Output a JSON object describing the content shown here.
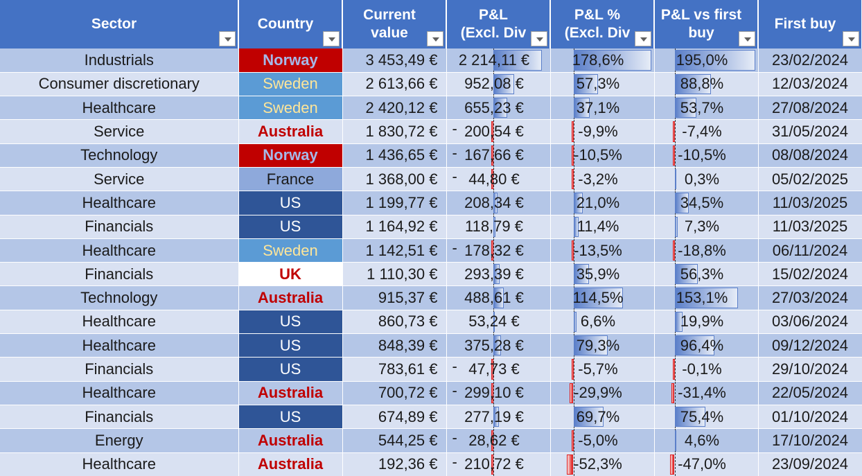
{
  "headers": {
    "sector": "Sector",
    "country": "Country",
    "current_value_1": "Current",
    "current_value_2": "value",
    "pl_1": "P&L",
    "pl_2": "(Excl. Div",
    "plpct_1": "P&L %",
    "plpct_2": "(Excl. Div",
    "plfirst_1": "P&L vs first",
    "plfirst_2": "buy",
    "first_buy": "First buy"
  },
  "colors": {
    "header_bg": "#4472C4",
    "band_dark": "#B4C6E7",
    "band_light": "#D9E1F2",
    "positive_bar": "#5B7FC9",
    "negative_bar": "#E02020"
  },
  "rows": [
    {
      "sector": "Industrials",
      "country": "Norway",
      "value": "3 453,49 €",
      "pl": "2 214,11 €",
      "pl_num": 2214.11,
      "pl_neg": false,
      "plpct": "178,6%",
      "plpct_num": 178.6,
      "plfirst": "195,0%",
      "plfirst_num": 195.0,
      "date": "23/02/2024"
    },
    {
      "sector": "Consumer discretionary",
      "country": "Sweden",
      "value": "2 613,66 €",
      "pl": "952,08 €",
      "pl_num": 952.08,
      "pl_neg": false,
      "plpct": "57,3%",
      "plpct_num": 57.3,
      "plfirst": "88,8%",
      "plfirst_num": 88.8,
      "date": "12/03/2024"
    },
    {
      "sector": "Healthcare",
      "country": "Sweden",
      "value": "2 420,12 €",
      "pl": "655,23 €",
      "pl_num": 655.23,
      "pl_neg": false,
      "plpct": "37,1%",
      "plpct_num": 37.1,
      "plfirst": "53,7%",
      "plfirst_num": 53.7,
      "date": "27/08/2024"
    },
    {
      "sector": "Service",
      "country": "Australia",
      "value": "1 830,72 €",
      "pl": "200,54 €",
      "pl_num": -200.54,
      "pl_neg": true,
      "plpct": "-9,9%",
      "plpct_num": -9.9,
      "plfirst": "-7,4%",
      "plfirst_num": -7.4,
      "date": "31/05/2024"
    },
    {
      "sector": "Technology",
      "country": "Norway",
      "value": "1 436,65 €",
      "pl": "167,66 €",
      "pl_num": -167.66,
      "pl_neg": true,
      "plpct": "-10,5%",
      "plpct_num": -10.5,
      "plfirst": "-10,5%",
      "plfirst_num": -10.5,
      "date": "08/08/2024"
    },
    {
      "sector": "Service",
      "country": "France",
      "value": "1 368,00 €",
      "pl": "44,80 €",
      "pl_num": -44.8,
      "pl_neg": true,
      "plpct": "-3,2%",
      "plpct_num": -3.2,
      "plfirst": "0,3%",
      "plfirst_num": 0.3,
      "date": "05/02/2025"
    },
    {
      "sector": "Healthcare",
      "country": "US",
      "value": "1 199,77 €",
      "pl": "208,34 €",
      "pl_num": 208.34,
      "pl_neg": false,
      "plpct": "21,0%",
      "plpct_num": 21.0,
      "plfirst": "34,5%",
      "plfirst_num": 34.5,
      "date": "11/03/2025"
    },
    {
      "sector": "Financials",
      "country": "US",
      "value": "1 164,92 €",
      "pl": "118,79 €",
      "pl_num": 118.79,
      "pl_neg": false,
      "plpct": "11,4%",
      "plpct_num": 11.4,
      "plfirst": "7,3%",
      "plfirst_num": 7.3,
      "date": "11/03/2025"
    },
    {
      "sector": "Healthcare",
      "country": "Sweden",
      "value": "1 142,51 €",
      "pl": "178,32 €",
      "pl_num": -178.32,
      "pl_neg": true,
      "plpct": "-13,5%",
      "plpct_num": -13.5,
      "plfirst": "-18,8%",
      "plfirst_num": -18.8,
      "date": "06/11/2024"
    },
    {
      "sector": "Financials",
      "country": "UK",
      "value": "1 110,30 €",
      "pl": "293,39 €",
      "pl_num": 293.39,
      "pl_neg": false,
      "plpct": "35,9%",
      "plpct_num": 35.9,
      "plfirst": "56,3%",
      "plfirst_num": 56.3,
      "date": "15/02/2024"
    },
    {
      "sector": "Technology",
      "country": "Australia",
      "value": "915,37 €",
      "pl": "488,61 €",
      "pl_num": 488.61,
      "pl_neg": false,
      "plpct": "114,5%",
      "plpct_num": 114.5,
      "plfirst": "153,1%",
      "plfirst_num": 153.1,
      "date": "27/03/2024"
    },
    {
      "sector": "Healthcare",
      "country": "US",
      "value": "860,73 €",
      "pl": "53,24 €",
      "pl_num": 53.24,
      "pl_neg": false,
      "plpct": "6,6%",
      "plpct_num": 6.6,
      "plfirst": "19,9%",
      "plfirst_num": 19.9,
      "date": "03/06/2024"
    },
    {
      "sector": "Healthcare",
      "country": "US",
      "value": "848,39 €",
      "pl": "375,28 €",
      "pl_num": 375.28,
      "pl_neg": false,
      "plpct": "79,3%",
      "plpct_num": 79.3,
      "plfirst": "96,4%",
      "plfirst_num": 96.4,
      "date": "09/12/2024"
    },
    {
      "sector": "Financials",
      "country": "US",
      "value": "783,61 €",
      "pl": "47,73 €",
      "pl_num": -47.73,
      "pl_neg": true,
      "plpct": "-5,7%",
      "plpct_num": -5.7,
      "plfirst": "-0,1%",
      "plfirst_num": -0.1,
      "date": "29/10/2024"
    },
    {
      "sector": "Healthcare",
      "country": "Australia",
      "value": "700,72 €",
      "pl": "299,10 €",
      "pl_num": -299.1,
      "pl_neg": true,
      "plpct": "-29,9%",
      "plpct_num": -29.9,
      "plfirst": "-31,4%",
      "plfirst_num": -31.4,
      "date": "22/05/2024"
    },
    {
      "sector": "Financials",
      "country": "US",
      "value": "674,89 €",
      "pl": "277,19 €",
      "pl_num": 277.19,
      "pl_neg": false,
      "plpct": "69,7%",
      "plpct_num": 69.7,
      "plfirst": "75,4%",
      "plfirst_num": 75.4,
      "date": "01/10/2024"
    },
    {
      "sector": "Energy",
      "country": "Australia",
      "value": "544,25 €",
      "pl": "28,62 €",
      "pl_num": -28.62,
      "pl_neg": true,
      "plpct": "-5,0%",
      "plpct_num": -5.0,
      "plfirst": "4,6%",
      "plfirst_num": 4.6,
      "date": "17/10/2024"
    },
    {
      "sector": "Healthcare",
      "country": "Australia",
      "value": "192,36 €",
      "pl": "210,72 €",
      "pl_num": -210.72,
      "pl_neg": true,
      "plpct": "-52,3%",
      "plpct_num": -52.3,
      "plfirst": "-47,0%",
      "plfirst_num": -47.0,
      "date": "23/09/2024"
    }
  ]
}
